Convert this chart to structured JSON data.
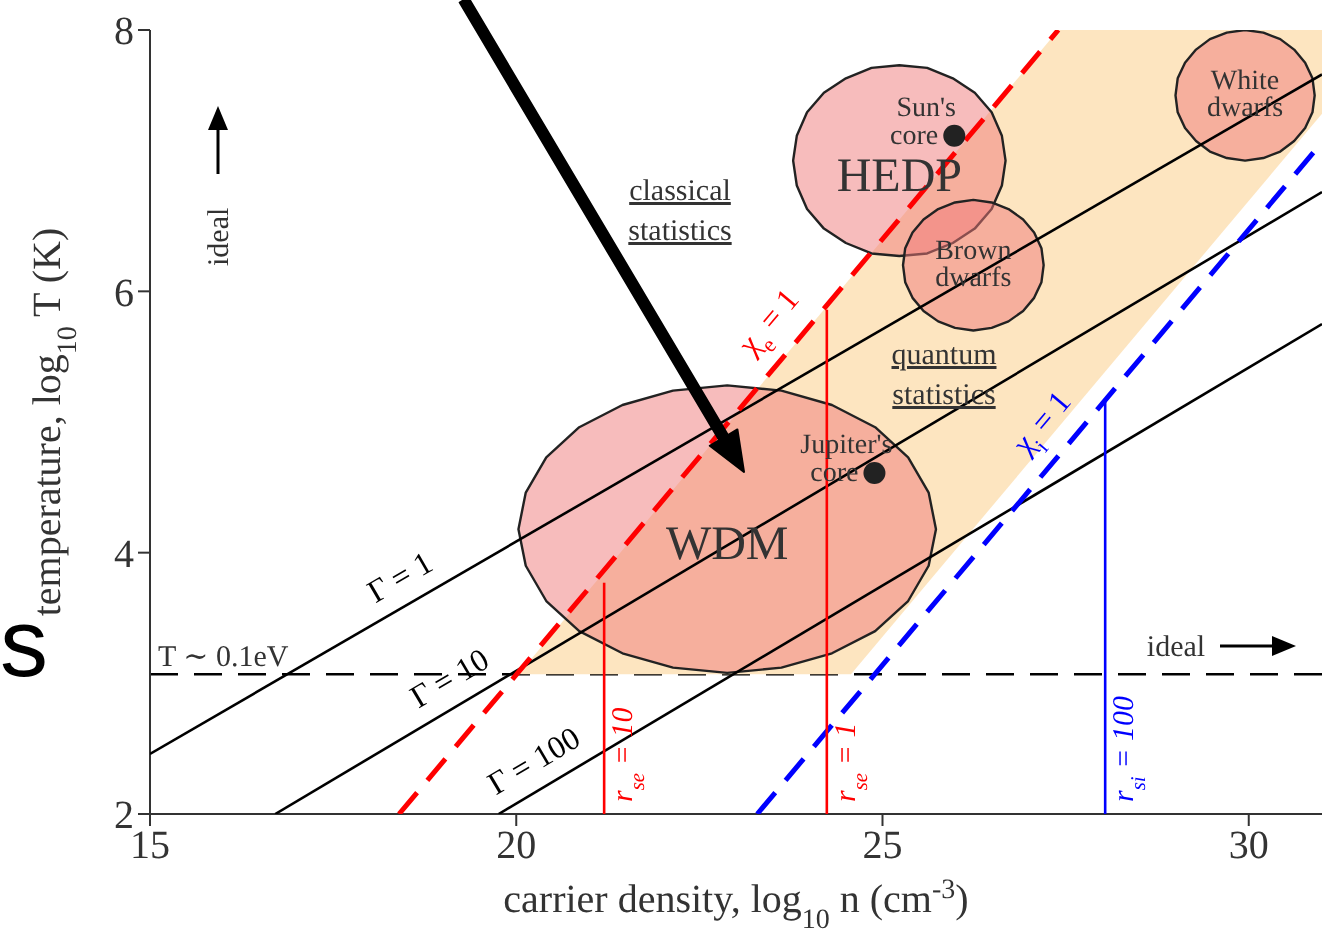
{
  "chart_data": {
    "type": "line",
    "xlabel": "carrier density, log$_{10}$ n (cm$^{-3}$)",
    "ylabel": "temperature, log$_{10}$ T (K)",
    "xlim": [
      15,
      31
    ],
    "ylim": [
      2,
      8
    ],
    "xticks": [
      15,
      20,
      25,
      30
    ],
    "yticks": [
      2,
      4,
      6,
      8
    ],
    "grid": false,
    "series": [
      {
        "type": "area",
        "color": "#fde5c0",
        "x": [
          20.03,
          27.4,
          31,
          31,
          24.57
        ],
        "values": [
          3.07,
          8,
          8,
          7.36,
          3.07
        ]
      },
      {
        "type": "area",
        "name": "WDM",
        "color": "#f07a7a",
        "line_style": "solid",
        "x": [
          25.73,
          25.63,
          25.35,
          24.9,
          24.31,
          23.62,
          22.88,
          22.14,
          21.45,
          20.86,
          20.41,
          20.13,
          20.03,
          20.13,
          20.41,
          20.86,
          21.45,
          22.14,
          22.88,
          23.62,
          24.31,
          24.9,
          25.35,
          25.63
        ],
        "values": [
          4.18,
          4.46,
          4.73,
          4.96,
          5.13,
          5.24,
          5.28,
          5.24,
          5.13,
          4.96,
          4.73,
          4.46,
          4.18,
          3.9,
          3.63,
          3.4,
          3.23,
          3.12,
          3.08,
          3.12,
          3.23,
          3.4,
          3.63,
          3.9
        ]
      },
      {
        "type": "area",
        "name": "HEDP",
        "color": "#f07a7a",
        "line_style": "solid",
        "x": [
          26.68,
          26.63,
          26.49,
          26.26,
          25.96,
          25.61,
          25.23,
          24.85,
          24.5,
          24.2,
          23.97,
          23.83,
          23.78,
          23.83,
          23.97,
          24.2,
          24.5,
          24.85,
          25.23,
          25.61,
          25.96,
          26.26,
          26.49,
          26.63
        ],
        "values": [
          7,
          7.19,
          7.37,
          7.52,
          7.63,
          7.71,
          7.73,
          7.71,
          7.63,
          7.52,
          7.37,
          7.19,
          7,
          6.81,
          6.63,
          6.48,
          6.37,
          6.29,
          6.27,
          6.29,
          6.37,
          6.48,
          6.63,
          6.81
        ]
      },
      {
        "type": "area",
        "name": "Brown dwarfs",
        "color": "#f07a7a",
        "line_style": "solid",
        "x": [
          27.2,
          27.17,
          27.07,
          26.92,
          26.72,
          26.49,
          26.24,
          25.99,
          25.76,
          25.56,
          25.41,
          25.31,
          25.28,
          25.31,
          25.41,
          25.56,
          25.76,
          25.99,
          26.24,
          26.49,
          26.72,
          26.92,
          27.07,
          27.17
        ],
        "values": [
          6.2,
          6.33,
          6.45,
          6.55,
          6.63,
          6.68,
          6.7,
          6.68,
          6.63,
          6.55,
          6.45,
          6.33,
          6.2,
          6.07,
          5.95,
          5.85,
          5.77,
          5.72,
          5.7,
          5.72,
          5.77,
          5.85,
          5.95,
          6.07
        ]
      },
      {
        "type": "area",
        "name": "White dwarfs",
        "color": "#f07a7a",
        "line_style": "solid",
        "x": [
          30.9,
          30.87,
          30.77,
          30.62,
          30.43,
          30.2,
          29.95,
          29.7,
          29.47,
          29.28,
          29.13,
          29.03,
          29,
          29.03,
          29.13,
          29.28,
          29.47,
          29.7,
          29.95,
          30.2,
          30.43,
          30.62,
          30.77,
          30.87
        ],
        "values": [
          7.5,
          7.63,
          7.75,
          7.85,
          7.93,
          7.98,
          8,
          7.98,
          7.93,
          7.85,
          7.75,
          7.63,
          7.5,
          7.37,
          7.25,
          7.15,
          7.07,
          7.02,
          7,
          7.02,
          7.07,
          7.15,
          7.25,
          7.37
        ]
      },
      {
        "name": "Γ = 1",
        "color": "#000000",
        "x": [
          15,
          31
        ],
        "values": [
          2.46,
          7.66
        ]
      },
      {
        "name": "Γ = 10",
        "color": "#000000",
        "x": [
          16.71,
          31
        ],
        "values": [
          2,
          6.76
        ]
      },
      {
        "name": "Γ = 100",
        "color": "#000000",
        "x": [
          19.76,
          31
        ],
        "values": [
          2,
          5.75
        ]
      },
      {
        "name": "χ$_{e}$ = 1",
        "color": "#ff0000",
        "line_style": "dashed",
        "x": [
          18.4,
          27.4
        ],
        "values": [
          2,
          8
        ]
      },
      {
        "name": "χ$_{i}$ = 1",
        "color": "#0000ff",
        "line_style": "dashed",
        "x": [
          23.29,
          31
        ],
        "values": [
          2,
          7.14
        ]
      },
      {
        "name": "r$_{se}$ = 10",
        "color": "#ff0000",
        "x": [
          21.2,
          21.2
        ],
        "values": [
          2,
          3.77
        ]
      },
      {
        "name": "r$_{se}$ = 1",
        "color": "#ff0000",
        "x": [
          24.24,
          24.24
        ],
        "values": [
          2,
          5.86
        ]
      },
      {
        "name": "r$_{si}$ = 100",
        "color": "#0000ff",
        "x": [
          28.04,
          28.04
        ],
        "values": [
          2,
          5.18
        ]
      },
      {
        "type": "scatter",
        "name": "Sun's core",
        "color": "#222222",
        "x": [
          25.98
        ],
        "values": [
          7.19
        ]
      },
      {
        "type": "scatter",
        "name": "Jupiter's core",
        "color": "#222222",
        "x": [
          24.89
        ],
        "values": [
          4.61
        ]
      }
    ],
    "ref_lines": [
      {
        "axis": "y",
        "value": 3.07,
        "label": "T ∼ 0.1eV",
        "color": "#000000",
        "line_style": "dashed"
      }
    ],
    "annotations": [
      "classical statistics",
      "quantum statistics",
      "ideal",
      "ideal",
      "s"
    ]
  }
}
